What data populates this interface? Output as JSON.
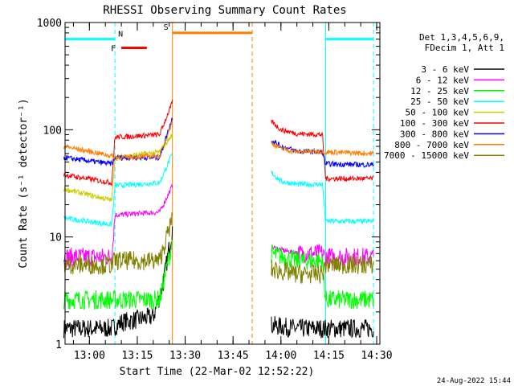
{
  "chart_data": {
    "type": "line",
    "title": "RHESSI Observing Summary Count Rates",
    "ylabel": "Count Rate (s⁻¹ detector⁻¹)",
    "xlabel": "Start Time (22-Mar-02 12:52:22)",
    "y_scale": "log",
    "ylim": [
      1,
      1000
    ],
    "xlim": [
      "12:52:22",
      "14:31:00"
    ],
    "x_ticks": [
      "13:00",
      "13:15",
      "13:30",
      "13:45",
      "14:00",
      "14:15",
      "14:30"
    ],
    "y_ticks": [
      "1",
      "10",
      "100",
      "1000"
    ],
    "legend_header": [
      "Det 1,3,4,5,6,9,",
      "FDecim 1, Att 1"
    ],
    "legend_placement": "outside-right",
    "timestamp": "24-Aug-2022 15:44",
    "series": [
      {
        "name": "3 - 6 keV",
        "color": "#000000",
        "segments": [
          {
            "x": [
              "12:52",
              "13:07",
              "13:10",
              "13:20",
              "13:23",
              "13:26"
            ],
            "y": [
              1.4,
              1.4,
              1.6,
              1.8,
              3.5,
              12
            ]
          },
          {
            "x": [
              "13:57",
              "14:05",
              "14:10",
              "14:15",
              "14:20",
              "14:29"
            ],
            "y": [
              1.5,
              1.4,
              1.4,
              1.4,
              1.4,
              1.4
            ]
          }
        ]
      },
      {
        "name": "6 - 12 keV",
        "color": "#ff00ff",
        "segments": [
          {
            "x": [
              "12:52",
              "13:07",
              "13:08",
              "13:22",
              "13:26"
            ],
            "y": [
              6.5,
              6.5,
              16,
              17,
              30
            ]
          },
          {
            "x": [
              "13:57",
              "14:05",
              "14:13",
              "14:14",
              "14:29"
            ],
            "y": [
              8,
              7,
              7,
              6.5,
              6.5
            ]
          }
        ]
      },
      {
        "name": "12 - 25 keV",
        "color": "#00ff00",
        "segments": [
          {
            "x": [
              "12:52",
              "13:07",
              "13:08",
              "13:22",
              "13:26"
            ],
            "y": [
              2.6,
              2.6,
              2.6,
              2.6,
              9
            ]
          },
          {
            "x": [
              "13:57",
              "14:05",
              "14:13",
              "14:14",
              "14:29"
            ],
            "y": [
              7,
              6,
              6,
              2.6,
              2.6
            ]
          }
        ]
      },
      {
        "name": "25 - 50 keV",
        "color": "#00ffff",
        "segments": [
          {
            "x": [
              "12:52",
              "13:07",
              "13:08",
              "13:22",
              "13:26"
            ],
            "y": [
              15,
              13,
              30,
              32,
              60
            ]
          },
          {
            "x": [
              "13:57",
              "14:00",
              "14:05",
              "14:13",
              "14:14",
              "14:29"
            ],
            "y": [
              40,
              33,
              31,
              31,
              14,
              14
            ]
          }
        ]
      },
      {
        "name": "50 - 100 keV",
        "color": "#cccc00",
        "segments": [
          {
            "x": [
              "12:52",
              "13:07",
              "13:08",
              "13:22",
              "13:26"
            ],
            "y": [
              28,
              22,
              55,
              62,
              90
            ]
          }
        ]
      },
      {
        "name": "100 - 300 keV",
        "color": "#ff0000",
        "segments": [
          {
            "x": [
              "12:52",
              "13:07",
              "13:08",
              "13:22",
              "13:26"
            ],
            "y": [
              38,
              32,
              85,
              90,
              180
            ]
          },
          {
            "x": [
              "13:57",
              "14:00",
              "14:05",
              "14:13",
              "14:14",
              "14:29"
            ],
            "y": [
              120,
              100,
              92,
              90,
              35,
              35
            ]
          }
        ]
      },
      {
        "name": "300 - 800 keV",
        "color": "#0000ff",
        "segments": [
          {
            "x": [
              "12:52",
              "13:07",
              "13:08",
              "13:22",
              "13:26"
            ],
            "y": [
              55,
              48,
              55,
              55,
              130
            ]
          },
          {
            "x": [
              "13:57",
              "14:00",
              "14:05",
              "14:13",
              "14:14",
              "14:29"
            ],
            "y": [
              80,
              70,
              63,
              62,
              48,
              47
            ]
          }
        ]
      },
      {
        "name": "800 - 7000 keV",
        "color": "#ff8000",
        "segments": [
          {
            "x": [
              "12:52",
              "13:07",
              "13:08",
              "13:22",
              "13:26"
            ],
            "y": [
              70,
              57,
              55,
              57,
              120
            ]
          },
          {
            "x": [
              "13:57",
              "14:00",
              "14:05",
              "14:13",
              "14:14",
              "14:29"
            ],
            "y": [
              75,
              67,
              62,
              63,
              62,
              60
            ]
          }
        ]
      },
      {
        "name": "7000 - 15000 keV",
        "color": "#808000",
        "segments": [
          {
            "x": [
              "12:52",
              "13:07",
              "13:08",
              "13:22",
              "13:26"
            ],
            "y": [
              5.5,
              5.5,
              6,
              6,
              15
            ]
          },
          {
            "x": [
              "13:57",
              "14:05",
              "14:13",
              "14:14",
              "14:29"
            ],
            "y": [
              5,
              4.5,
              4.5,
              5.5,
              5.5
            ]
          }
        ]
      }
    ],
    "annotations": [
      {
        "label": "F",
        "color": "#ff0000",
        "x_start": "13:08",
        "x_end": "13:18"
      },
      {
        "label": "N",
        "color": "#00ffff",
        "x": "13:08"
      },
      {
        "label": "S",
        "color": "#ff8000",
        "x_start": "13:26",
        "x_end": "13:51"
      }
    ]
  }
}
